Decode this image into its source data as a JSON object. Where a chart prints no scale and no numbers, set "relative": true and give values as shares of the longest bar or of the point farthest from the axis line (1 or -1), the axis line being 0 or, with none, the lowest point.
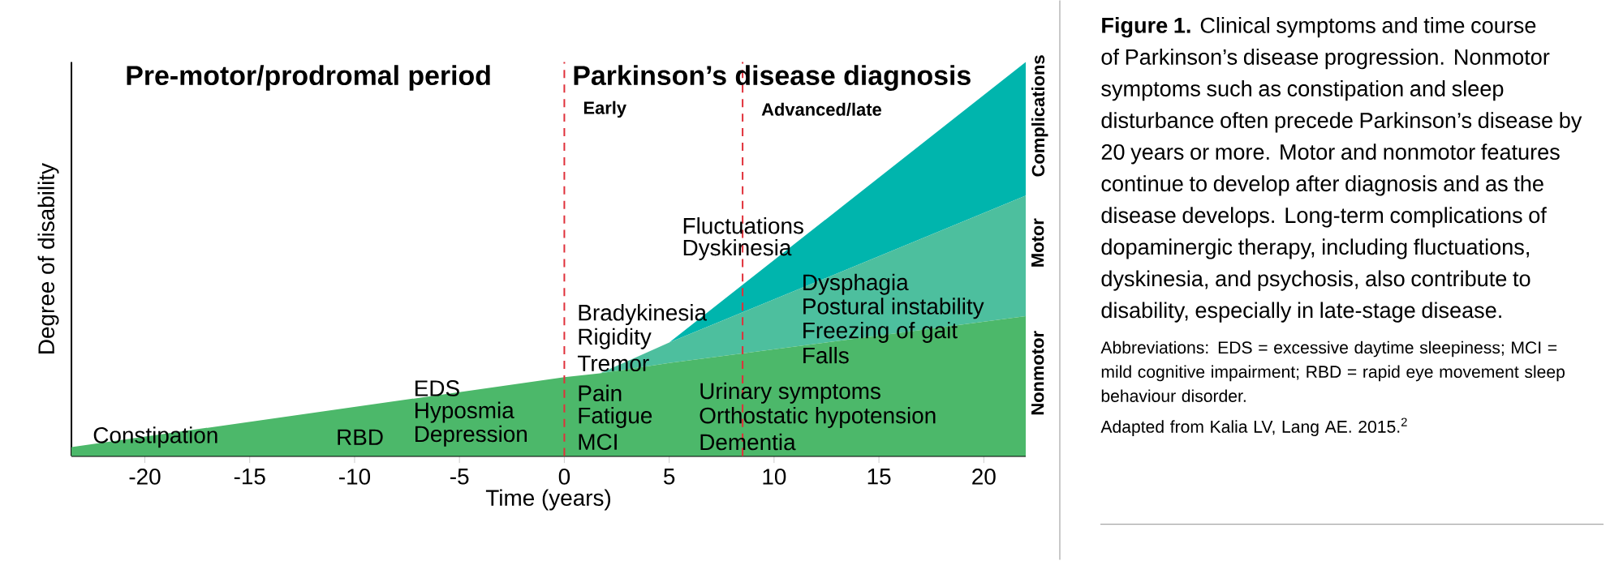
{
  "chart_data": {
    "type": "area",
    "stacked": true,
    "relative": true,
    "xlabel": "Time (years)",
    "ylabel": "Degree of disability",
    "x": [
      -23.5,
      0,
      1.7,
      5,
      22
    ],
    "xlim": [
      -23.5,
      22
    ],
    "xticks": [
      -20,
      -15,
      -10,
      -5,
      0,
      5,
      10,
      15,
      20
    ],
    "series": [
      {
        "name": "Nonmotor",
        "color": "#4cb86a",
        "values": [
          0.023,
          0.2,
          0.21,
          0.236,
          0.355
        ]
      },
      {
        "name": "Motor",
        "color": "#4dbf9e",
        "values": [
          0,
          0,
          0,
          0.052,
          0.306
        ]
      },
      {
        "name": "Complications",
        "color": "#00b5ad",
        "values": [
          0,
          0,
          0,
          0,
          0.339
        ]
      }
    ],
    "ref_lines": [
      {
        "axis": "x",
        "value": 0,
        "label": "Early",
        "color": "#e0303a",
        "line_style": "dashed"
      },
      {
        "axis": "x",
        "value": 8.5,
        "label": "Advanced/late",
        "color": "#e0303a",
        "line_style": "dashed"
      }
    ],
    "annotations": [
      "Pre-motor/prodromal period",
      "Parkinson’s disease diagnosis",
      "Constipation",
      "RBD",
      "EDS",
      "Hyposmia",
      "Depression",
      "Bradykinesia",
      "Rigidity",
      "Tremor",
      "Pain",
      "Fatigue",
      "MCI",
      "Fluctuations",
      "Dyskinesia",
      "Dysphagia",
      "Postural instability",
      "Freezing of gait",
      "Falls",
      "Urinary symptoms",
      "Orthostatic hypotension",
      "Dementia",
      "**Figure 1.** Clinical symptoms and time course of Parkinson’s disease progression. Nonmotor symptoms such as constipation and sleep disturbance often precede Parkinson’s disease by 20 years or more. Motor and nonmotor features continue to develop after diagnosis and as the disease develops. Long-term complications of dopaminergic therapy, including fluctuations, dyskinesia, and psychosis, also contribute to disability, especially in late-stage disease.",
      "Abbreviations: EDS = excessive daytime sleepiness; MCI = mild cognitive impairment; RBD = rapid eye movement sleep behaviour disorder.",
      "Adapted from Kalia LV, Lang AE. 2015.$^{2}$"
    ]
  }
}
